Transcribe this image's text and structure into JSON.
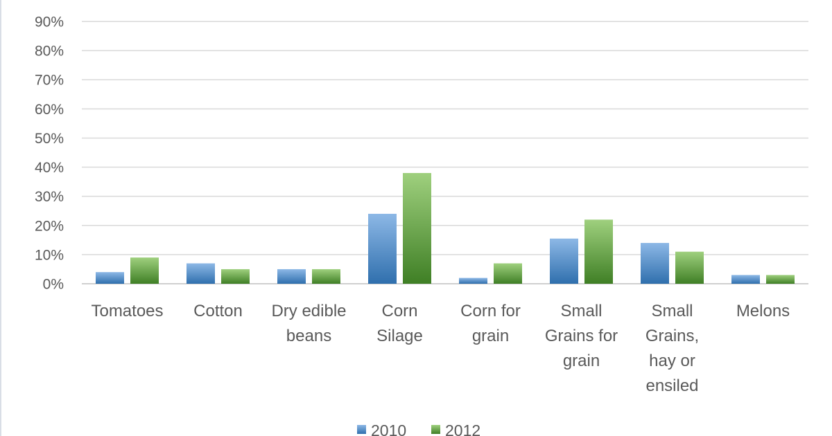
{
  "chart_data": {
    "type": "bar",
    "title": "",
    "xlabel": "",
    "ylabel": "",
    "categories": [
      [
        "Tomatoes"
      ],
      [
        "Cotton"
      ],
      [
        "Dry edible",
        "beans"
      ],
      [
        "Corn",
        "Silage"
      ],
      [
        "Corn for",
        "grain"
      ],
      [
        "Small",
        "Grains for",
        "grain"
      ],
      [
        "Small",
        "Grains,",
        "hay or",
        "ensiled"
      ],
      [
        "Melons"
      ]
    ],
    "series": [
      {
        "name": "2010",
        "color": "#5b9bd5",
        "values": [
          4,
          7,
          5,
          24,
          2,
          15.5,
          14,
          3
        ]
      },
      {
        "name": "2012",
        "color": "#70ad47",
        "values": [
          9,
          5,
          5,
          38,
          7,
          22,
          11,
          3
        ]
      }
    ],
    "ylim": [
      0,
      90
    ],
    "yticks": [
      "0%",
      "10%",
      "20%",
      "30%",
      "40%",
      "50%",
      "60%",
      "70%",
      "80%",
      "90%"
    ],
    "grid": true,
    "legend": "bottom-center"
  }
}
